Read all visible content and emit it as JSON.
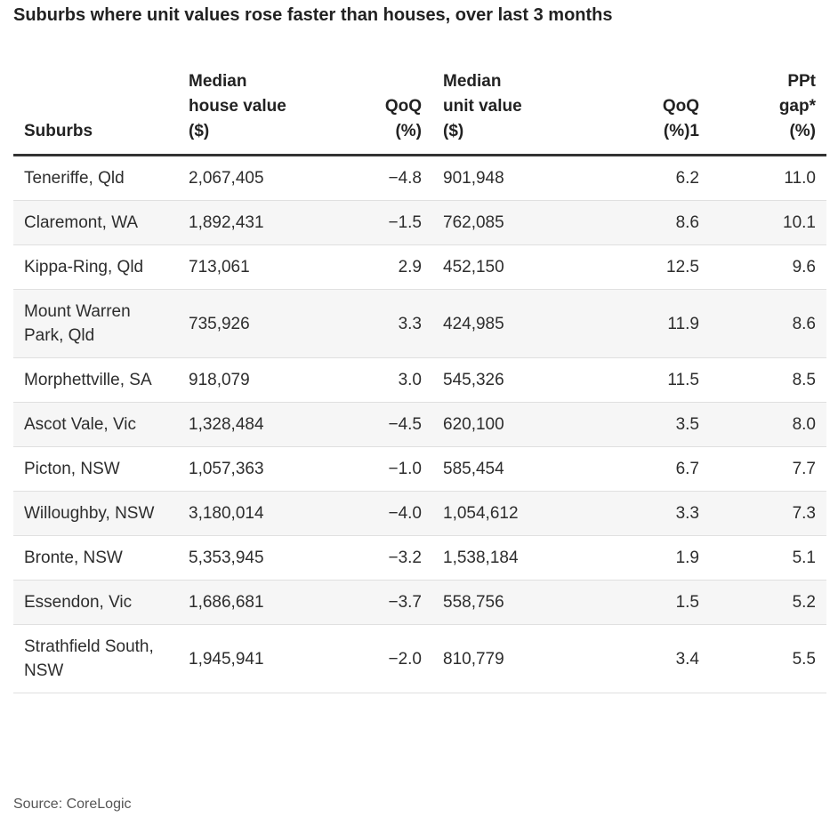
{
  "chart_data": {
    "type": "table",
    "title": "Suburbs where unit values rose faster than houses, over last 3 months",
    "columns": [
      [
        "Suburbs"
      ],
      [
        "Median",
        "house value",
        "($)"
      ],
      [
        "QoQ",
        "(%)"
      ],
      [
        "Median",
        "unit value",
        "($)"
      ],
      [
        "QoQ",
        "(%)1"
      ],
      [
        "PPt",
        "gap*",
        "(%)"
      ]
    ],
    "rows": [
      [
        "Teneriffe, Qld",
        "2,067,405",
        "−4.8",
        "901,948",
        "6.2",
        "11.0"
      ],
      [
        "Claremont, WA",
        "1,892,431",
        "−1.5",
        "762,085",
        "8.6",
        "10.1"
      ],
      [
        "Kippa-Ring, Qld",
        "713,061",
        "2.9",
        "452,150",
        "12.5",
        "9.6"
      ],
      [
        "Mount Warren Park, Qld",
        "735,926",
        "3.3",
        "424,985",
        "11.9",
        "8.6"
      ],
      [
        "Morphettville, SA",
        "918,079",
        "3.0",
        "545,326",
        "11.5",
        "8.5"
      ],
      [
        "Ascot Vale, Vic",
        "1,328,484",
        "−4.5",
        "620,100",
        "3.5",
        "8.0"
      ],
      [
        "Picton, NSW",
        "1,057,363",
        "−1.0",
        "585,454",
        "6.7",
        "7.7"
      ],
      [
        "Willoughby, NSW",
        "3,180,014",
        "−4.0",
        "1,054,612",
        "3.3",
        "7.3"
      ],
      [
        "Bronte, NSW",
        "5,353,945",
        "−3.2",
        "1,538,184",
        "1.9",
        "5.1"
      ],
      [
        "Essendon, Vic",
        "1,686,681",
        "−3.7",
        "558,756",
        "1.5",
        "5.2"
      ],
      [
        "Strathfield South, NSW",
        "1,945,941",
        "−2.0",
        "810,779",
        "3.4",
        "5.5"
      ]
    ],
    "source": "Source: CoreLogic"
  }
}
